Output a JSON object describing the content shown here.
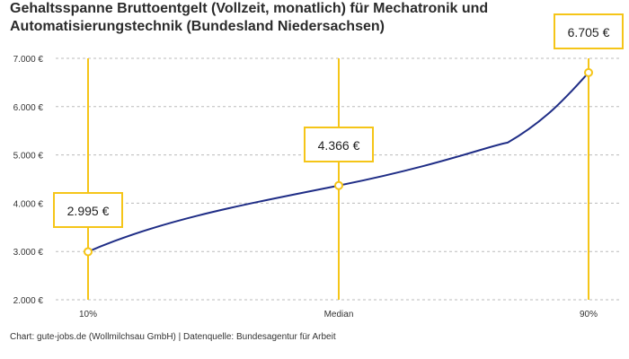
{
  "title": "Gehaltsspanne Bruttoentgelt (Vollzeit, monatlich) für Mechatronik und Automatisierungstechnik (Bundesland Niedersachsen)",
  "footer": "Chart: gute-jobs.de (Wollmilchsau GmbH) | Datenquelle: Bundesagentur für Arbeit",
  "colors": {
    "line": "#1f2d86",
    "accent": "#f5c518",
    "grid": "#bbbbbb",
    "text": "#333333"
  },
  "chart_data": {
    "type": "line",
    "categories": [
      "10%",
      "Median",
      "90%"
    ],
    "values": [
      2995,
      4366,
      6705
    ],
    "value_labels": [
      "2.995 €",
      "4.366 €",
      "6.705 €"
    ],
    "ylim": [
      2000,
      7000
    ],
    "yticks": [
      2000,
      3000,
      4000,
      5000,
      6000,
      7000
    ],
    "ytick_labels": [
      "2.000 €",
      "3.000 €",
      "4.000 €",
      "5.000 €",
      "6.000 €",
      "7.000 €"
    ],
    "grid": true
  }
}
